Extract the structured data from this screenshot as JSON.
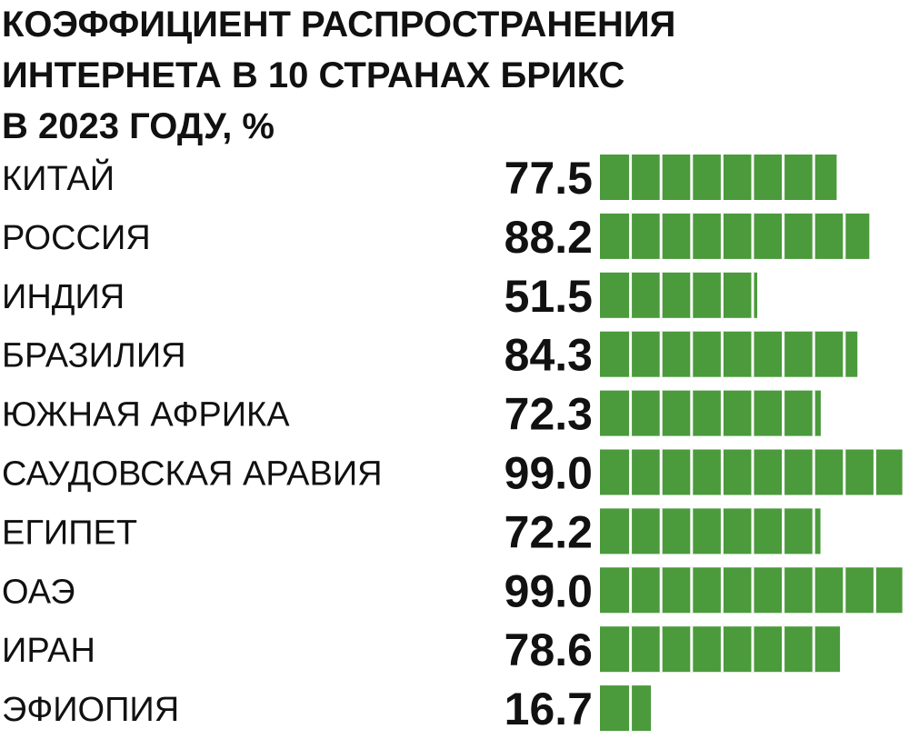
{
  "chart_data": {
    "type": "bar",
    "orientation": "horizontal",
    "title": [
      "КОЭФФИЦИЕНТ РАСПРОСТРАНЕНИЯ",
      "ИНТЕРНЕТА В 10 СТРАНАХ БРИКС",
      "В 2023 ГОДУ, %"
    ],
    "categories": [
      "КИТАЙ",
      "РОССИЯ",
      "ИНДИЯ",
      "БРАЗИЛИЯ",
      "ЮЖНАЯ АФРИКА",
      "САУДОВСКАЯ АРАВИЯ",
      "ЕГИПЕТ",
      "ОАЭ",
      "ИРАН",
      "ЭФИОПИЯ"
    ],
    "values": [
      77.5,
      88.2,
      51.5,
      84.3,
      72.3,
      99.0,
      72.2,
      99.0,
      78.6,
      16.7
    ],
    "value_labels": [
      "77.5",
      "88.2",
      "51.5",
      "84.3",
      "72.3",
      "99.0",
      "72.2",
      "99.0",
      "78.6",
      "16.7"
    ],
    "color": "#4b9a3c"
  }
}
